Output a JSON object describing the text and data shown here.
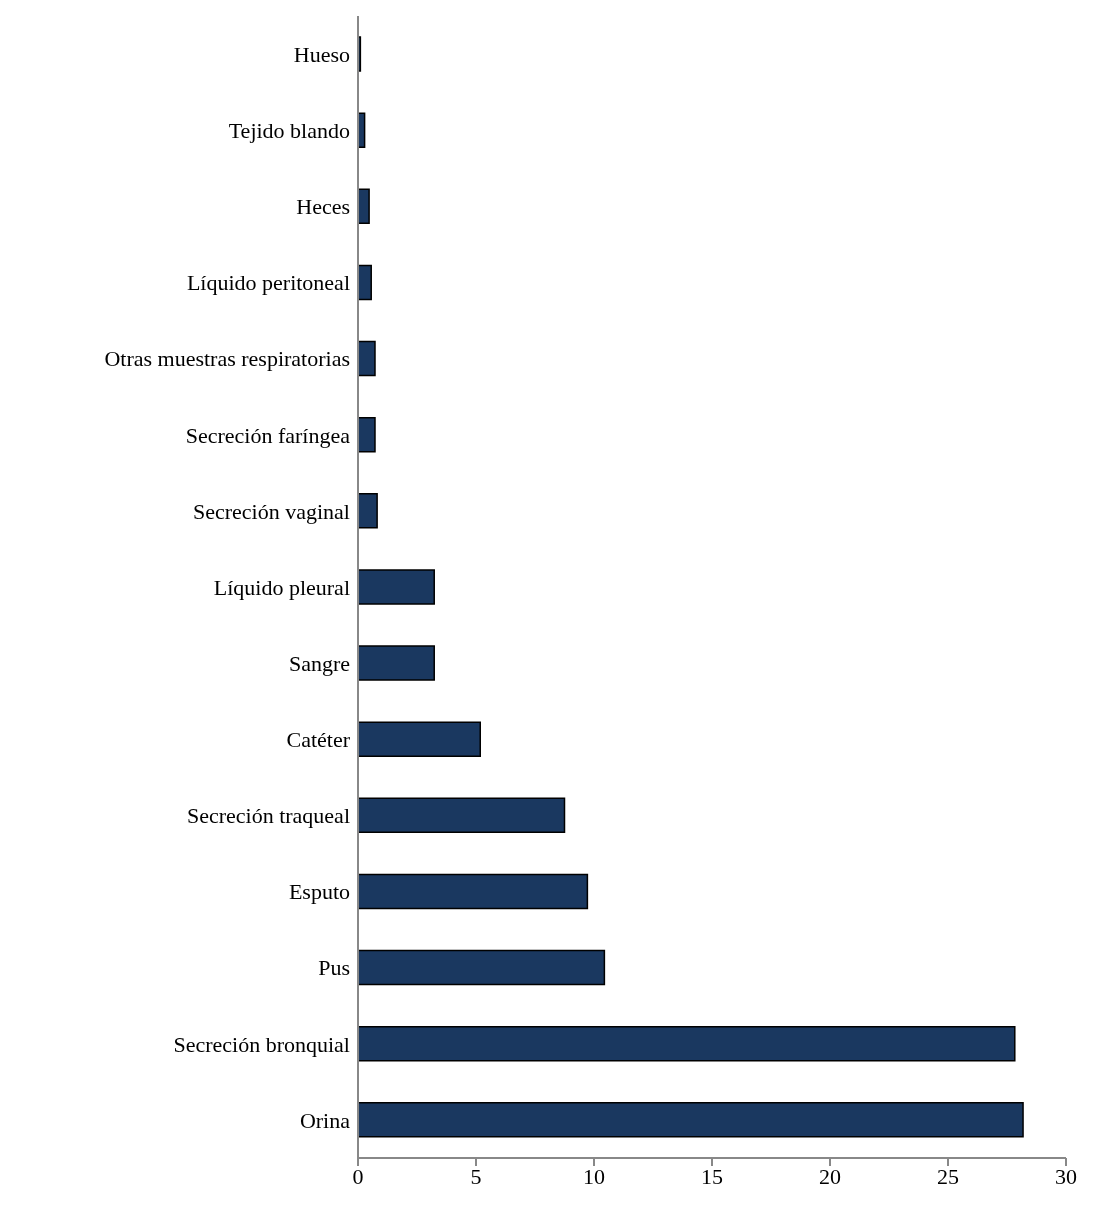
{
  "chart_data": {
    "type": "bar",
    "orientation": "horizontal",
    "categories": [
      "Hueso",
      "Tejido blando",
      "Heces",
      "Líquido peritoneal",
      "Otras muestras respiratorias",
      "Secreción faríngea",
      "Secreción vaginal",
      "Líquido pleural",
      "Sangre",
      "Catéter",
      "Secreción traqueal",
      "Esputo",
      "Pus",
      "Secreción bronquial",
      "Orina"
    ],
    "values": [
      0.1,
      0.28,
      0.47,
      0.56,
      0.72,
      0.72,
      0.81,
      3.23,
      3.23,
      5.18,
      8.75,
      9.72,
      10.44,
      27.83,
      28.18
    ],
    "color": "#1a3860",
    "xlim": [
      0,
      30
    ],
    "xticks": [
      0,
      5,
      10,
      15,
      20,
      25,
      30
    ],
    "grid": false,
    "legend": false
  }
}
